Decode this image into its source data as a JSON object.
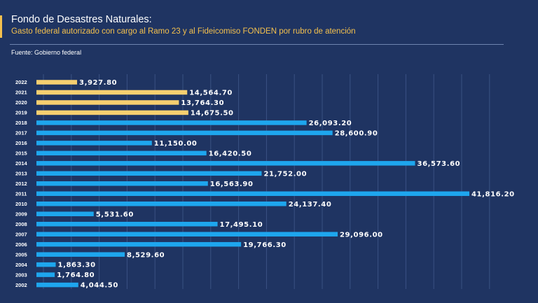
{
  "header": {
    "title": "Fondo de Desastres Naturales:",
    "subtitle": "Gasto federal autorizado con cargo al Ramo 23 y al Fideicomiso FONDEN por rubro de atención",
    "source": "Fuente: Gobierno federal"
  },
  "colors": {
    "background": "#1f3462",
    "accent": "#f3c04e",
    "bar_primary": "#1ea6ee",
    "bar_highlight": "#f6cf70",
    "text": "#ffffff"
  },
  "chart_data": {
    "type": "bar",
    "orientation": "horizontal",
    "title": "Fondo de Desastres Naturales:",
    "subtitle": "Gasto federal autorizado con cargo al Ramo 23 y al Fideicomiso FONDEN por rubro de atención",
    "xlim": [
      0,
      45000
    ],
    "grid": true,
    "categories": [
      "2022",
      "2021",
      "2020",
      "2019",
      "2018",
      "2017",
      "2016",
      "2015",
      "2014",
      "2013",
      "2012",
      "2011",
      "2010",
      "2009",
      "2008",
      "2007",
      "2006",
      "2005",
      "2004",
      "2003",
      "2002"
    ],
    "values": [
      3927.8,
      14564.7,
      13764.3,
      14675.5,
      26093.2,
      28600.9,
      11150.0,
      16420.5,
      36573.6,
      21752.0,
      16563.9,
      41816.2,
      24137.4,
      5531.6,
      17495.1,
      29096.0,
      19766.3,
      8529.6,
      1863.3,
      1764.8,
      4044.5
    ],
    "value_labels": [
      "3,927.80",
      "14,564.70",
      "13,764.30",
      "14,675.50",
      "26,093.20",
      "28,600.90",
      "11,150.00",
      "16,420.50",
      "36,573.60",
      "21,752.00",
      "16,563.90",
      "41,816.20",
      "24,137.40",
      "5,531.60",
      "17,495.10",
      "29,096.00",
      "19,766.30",
      "8,529.60",
      "1,863.30",
      "1,764.80",
      "4,044.50"
    ],
    "highlighted_categories": [
      "2022",
      "2021",
      "2020",
      "2019"
    ]
  }
}
